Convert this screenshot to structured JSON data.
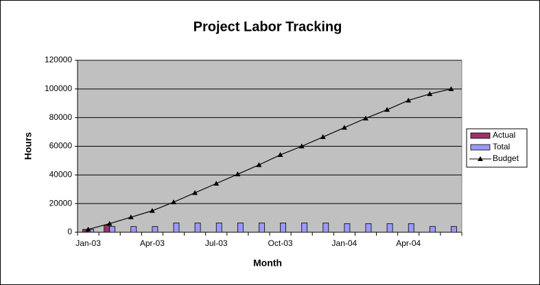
{
  "chart_data": {
    "type": "bar",
    "title": "Project Labor Tracking",
    "xlabel": "Month",
    "ylabel": "Hours",
    "categories": [
      "Jan-03",
      null,
      null,
      "Apr-03",
      null,
      null,
      "Jul-03",
      null,
      null,
      "Oct-03",
      null,
      null,
      "Jan-04",
      null,
      null,
      "Apr-04",
      null,
      null
    ],
    "series": [
      {
        "name": "Actual",
        "type": "bar",
        "color": "#993366",
        "values": [
          2000,
          5000,
          null,
          null,
          null,
          null,
          null,
          null,
          null,
          null,
          null,
          null,
          null,
          null,
          null,
          null,
          null,
          null
        ]
      },
      {
        "name": "Total",
        "type": "bar",
        "color": "#9999ff",
        "values": [
          2000,
          4000,
          4000,
          4000,
          6500,
          6500,
          6500,
          6500,
          6500,
          6500,
          6500,
          6500,
          6000,
          6000,
          6000,
          6000,
          4000,
          4000
        ]
      },
      {
        "name": "Budget",
        "type": "line",
        "color": "#000000",
        "values": [
          2000,
          6000,
          10500,
          15000,
          21000,
          27500,
          34000,
          40500,
          47000,
          54000,
          60000,
          66500,
          73000,
          79500,
          85500,
          92000,
          96500,
          100000
        ]
      }
    ],
    "ylim": [
      0,
      120000
    ],
    "yticks": [
      0,
      20000,
      40000,
      60000,
      80000,
      100000,
      120000
    ],
    "grid": true,
    "legend": "right"
  }
}
